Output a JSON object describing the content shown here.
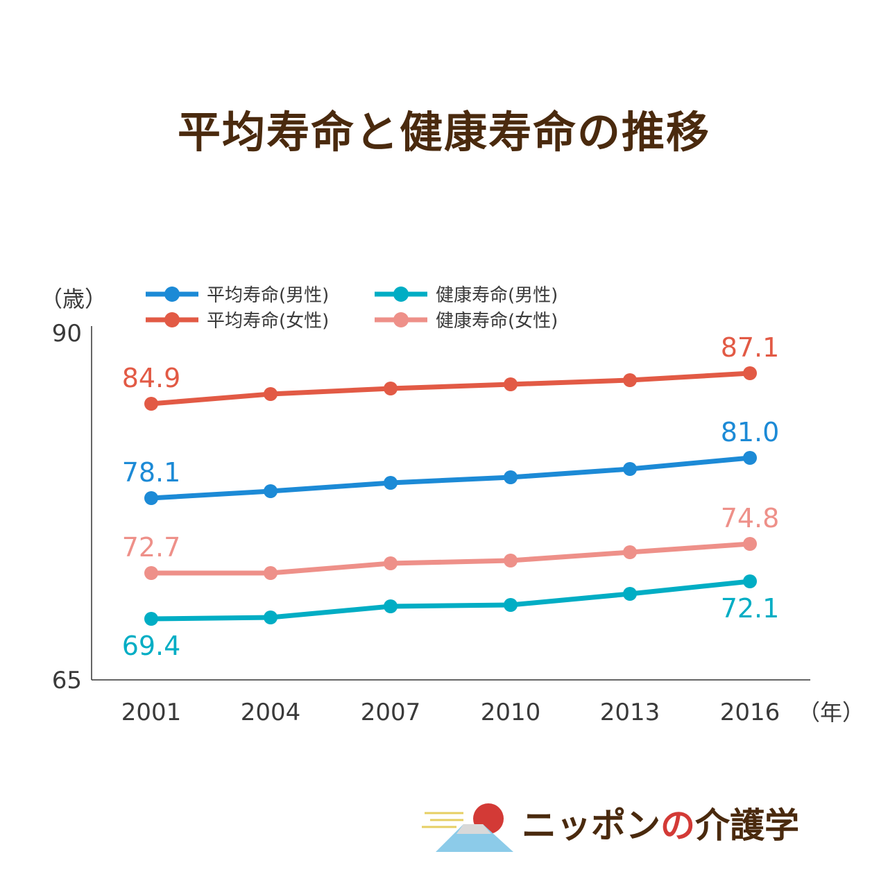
{
  "title": "平均寿命と健康寿命の推移",
  "chart_data": {
    "type": "line",
    "title": "平均寿命と健康寿命の推移",
    "ylabel": "（歳）",
    "xlabel": "（年）",
    "ylim": [
      65,
      90
    ],
    "yticks": [
      "65",
      "90"
    ],
    "categories": [
      "2001",
      "2004",
      "2007",
      "2010",
      "2013",
      "2016"
    ],
    "legend_position": "top-left",
    "grid": false,
    "series": [
      {
        "name": "平均寿命(男性)",
        "color": "#1c8ad6",
        "values": [
          78.1,
          78.6,
          79.2,
          79.6,
          80.2,
          81.0
        ],
        "labels": [
          "78.1",
          "",
          "",
          "",
          "",
          "81.0"
        ]
      },
      {
        "name": "平均寿命(女性)",
        "color": "#e25a45",
        "values": [
          84.9,
          85.6,
          86.0,
          86.3,
          86.6,
          87.1
        ],
        "labels": [
          "84.9",
          "",
          "",
          "",
          "",
          "87.1"
        ]
      },
      {
        "name": "健康寿命(男性)",
        "color": "#00adc4",
        "values": [
          69.4,
          69.5,
          70.3,
          70.4,
          71.2,
          72.1
        ],
        "labels": [
          "69.4",
          "",
          "",
          "",
          "",
          "72.1"
        ]
      },
      {
        "name": "健康寿命(女性)",
        "color": "#ee9089",
        "values": [
          72.7,
          72.7,
          73.4,
          73.6,
          74.2,
          74.8
        ],
        "labels": [
          "72.7",
          "",
          "",
          "",
          "",
          "74.8"
        ]
      }
    ]
  },
  "logo": {
    "text_main": "ニッポン",
    "text_accent": "の",
    "text_end": "介護学",
    "icon": "mount-fuji-sun-icon"
  }
}
